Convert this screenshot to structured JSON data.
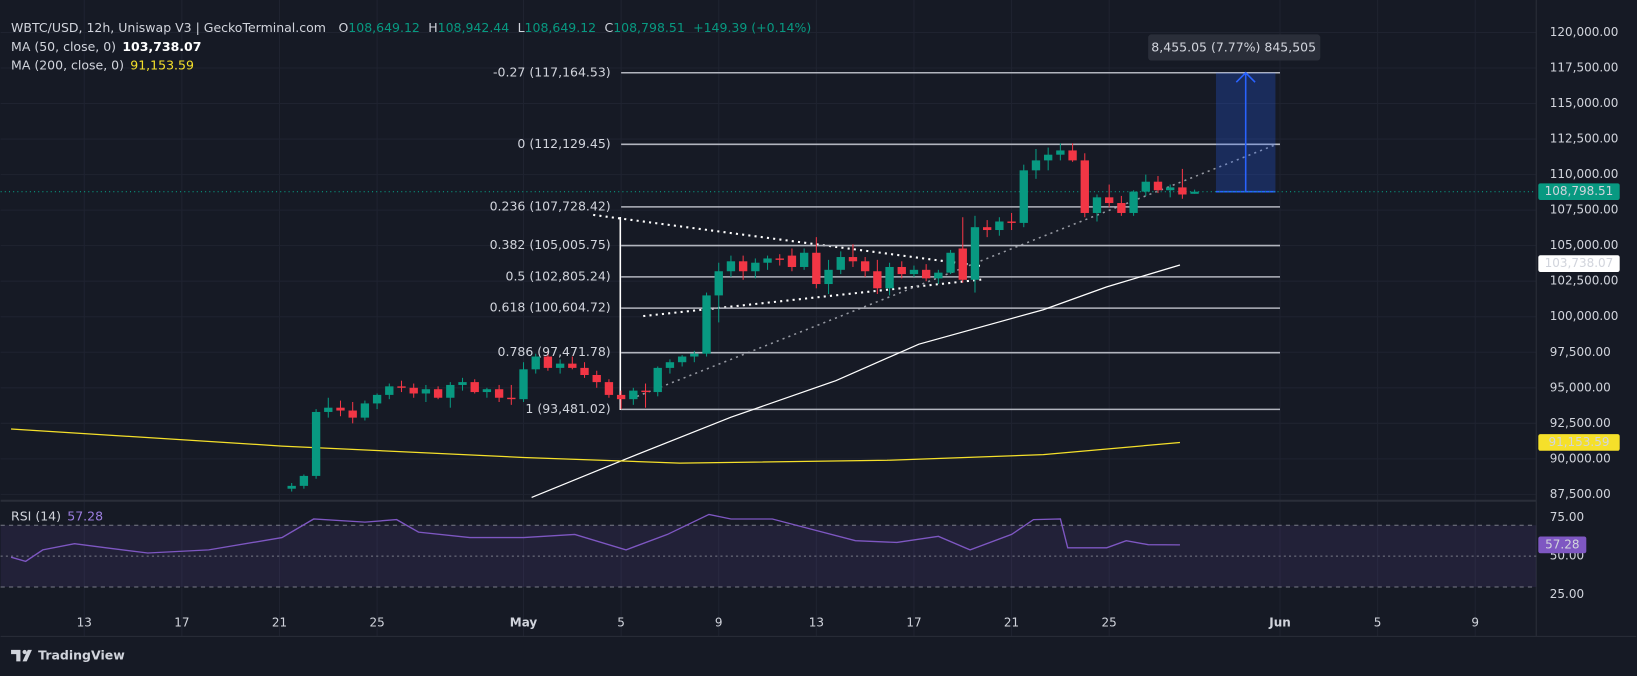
{
  "chart_data": {
    "type": "candlestick",
    "title": "WBTC/USD, 12h, Uniswap V3 | GeckoTerminal.com",
    "ohlc_legend": [
      {
        "key": "O",
        "value": "108,649.12"
      },
      {
        "key": "H",
        "value": "108,942.44"
      },
      {
        "key": "L",
        "value": "108,649.12"
      },
      {
        "key": "C",
        "value": "108,798.51"
      }
    ],
    "change": "+149.39 (+0.14%)",
    "up_color": "#089981",
    "down_color": "#f23645",
    "candles": [
      {
        "x": 21.5,
        "open": 87900,
        "high": 88300,
        "low": 87700,
        "close": 88100
      },
      {
        "x": 22,
        "open": 88100,
        "high": 88900,
        "low": 87900,
        "close": 88800
      },
      {
        "x": 22.5,
        "open": 88800,
        "high": 93500,
        "low": 88600,
        "close": 93300
      },
      {
        "x": 23,
        "open": 93300,
        "high": 94300,
        "low": 92900,
        "close": 93600
      },
      {
        "x": 23.5,
        "open": 93600,
        "high": 94100,
        "low": 93000,
        "close": 93400
      },
      {
        "x": 24,
        "open": 93400,
        "high": 94000,
        "low": 92500,
        "close": 92900
      },
      {
        "x": 24.5,
        "open": 92900,
        "high": 94100,
        "low": 92700,
        "close": 93900
      },
      {
        "x": 25,
        "open": 93900,
        "high": 94600,
        "low": 93500,
        "close": 94500
      },
      {
        "x": 25.5,
        "open": 94500,
        "high": 95300,
        "low": 94200,
        "close": 95100
      },
      {
        "x": 26,
        "open": 95100,
        "high": 95500,
        "low": 94700,
        "close": 95000
      },
      {
        "x": 26.5,
        "open": 95000,
        "high": 95300,
        "low": 94300,
        "close": 94600
      },
      {
        "x": 27,
        "open": 94600,
        "high": 95200,
        "low": 94000,
        "close": 94900
      },
      {
        "x": 27.5,
        "open": 94900,
        "high": 95100,
        "low": 94200,
        "close": 94300
      },
      {
        "x": 28,
        "open": 94300,
        "high": 95400,
        "low": 93600,
        "close": 95200
      },
      {
        "x": 28.5,
        "open": 95200,
        "high": 95700,
        "low": 94800,
        "close": 95400
      },
      {
        "x": 29,
        "open": 95400,
        "high": 95600,
        "low": 94600,
        "close": 94700
      },
      {
        "x": 29.5,
        "open": 94700,
        "high": 95000,
        "low": 94300,
        "close": 94900
      },
      {
        "x": 30,
        "open": 94900,
        "high": 95200,
        "low": 94000,
        "close": 94300
      },
      {
        "x": 30.5,
        "open": 94300,
        "high": 95200,
        "low": 93800,
        "close": 94200
      },
      {
        "x": 31,
        "open": 94200,
        "high": 96800,
        "low": 94000,
        "close": 96300
      },
      {
        "x": 31.5,
        "open": 96300,
        "high": 97400,
        "low": 96000,
        "close": 97200
      },
      {
        "x": 32,
        "open": 97200,
        "high": 97600,
        "low": 96200,
        "close": 96400
      },
      {
        "x": 32.5,
        "open": 96400,
        "high": 97000,
        "low": 96000,
        "close": 96700
      },
      {
        "x": 33,
        "open": 96700,
        "high": 97200,
        "low": 96300,
        "close": 96400
      },
      {
        "x": 33.5,
        "open": 96400,
        "high": 96800,
        "low": 95700,
        "close": 95900
      },
      {
        "x": 34,
        "open": 95900,
        "high": 96200,
        "low": 95000,
        "close": 95400
      },
      {
        "x": 34.5,
        "open": 95400,
        "high": 95600,
        "low": 94300,
        "close": 94500
      },
      {
        "x": 35,
        "open": 94500,
        "high": 94800,
        "low": 93500,
        "close": 94200
      },
      {
        "x": 35.5,
        "open": 94200,
        "high": 95000,
        "low": 93800,
        "close": 94800
      },
      {
        "x": 36,
        "open": 94800,
        "high": 95300,
        "low": 93600,
        "close": 94700
      },
      {
        "x": 36.5,
        "open": 94700,
        "high": 96500,
        "low": 94400,
        "close": 96400
      },
      {
        "x": 37,
        "open": 96400,
        "high": 97000,
        "low": 96000,
        "close": 96800
      },
      {
        "x": 37.5,
        "open": 96800,
        "high": 97300,
        "low": 96500,
        "close": 97200
      },
      {
        "x": 38,
        "open": 97200,
        "high": 97600,
        "low": 96800,
        "close": 97400
      },
      {
        "x": 38.5,
        "open": 97400,
        "high": 101700,
        "low": 97200,
        "close": 101500
      },
      {
        "x": 39,
        "open": 101500,
        "high": 103800,
        "low": 99600,
        "close": 103200
      },
      {
        "x": 39.5,
        "open": 103200,
        "high": 104300,
        "low": 102800,
        "close": 103900
      },
      {
        "x": 40,
        "open": 103900,
        "high": 104300,
        "low": 102600,
        "close": 103200
      },
      {
        "x": 40.5,
        "open": 103200,
        "high": 104100,
        "low": 102700,
        "close": 103800
      },
      {
        "x": 41,
        "open": 103800,
        "high": 104300,
        "low": 103300,
        "close": 104100
      },
      {
        "x": 41.5,
        "open": 104100,
        "high": 104400,
        "low": 103600,
        "close": 104000
      },
      {
        "x": 42,
        "open": 104300,
        "high": 104800,
        "low": 103200,
        "close": 103500
      },
      {
        "x": 42.5,
        "open": 103500,
        "high": 104800,
        "low": 103300,
        "close": 104500
      },
      {
        "x": 43,
        "open": 104500,
        "high": 105600,
        "low": 102000,
        "close": 102300
      },
      {
        "x": 43.5,
        "open": 102300,
        "high": 104000,
        "low": 101600,
        "close": 103300
      },
      {
        "x": 44,
        "open": 103300,
        "high": 104600,
        "low": 103000,
        "close": 104200
      },
      {
        "x": 44.5,
        "open": 104200,
        "high": 105100,
        "low": 103500,
        "close": 103900
      },
      {
        "x": 45,
        "open": 103900,
        "high": 104200,
        "low": 102800,
        "close": 103200
      },
      {
        "x": 45.5,
        "open": 103200,
        "high": 104000,
        "low": 101600,
        "close": 102000
      },
      {
        "x": 46,
        "open": 102000,
        "high": 103800,
        "low": 101500,
        "close": 103500
      },
      {
        "x": 46.5,
        "open": 103500,
        "high": 103900,
        "low": 102700,
        "close": 103000
      },
      {
        "x": 47,
        "open": 103000,
        "high": 103600,
        "low": 102800,
        "close": 103300
      },
      {
        "x": 47.5,
        "open": 103300,
        "high": 103700,
        "low": 102500,
        "close": 102700
      },
      {
        "x": 48,
        "open": 102700,
        "high": 103300,
        "low": 102300,
        "close": 103100
      },
      {
        "x": 48.5,
        "open": 103100,
        "high": 104700,
        "low": 103000,
        "close": 104500
      },
      {
        "x": 49,
        "open": 104800,
        "high": 107000,
        "low": 102400,
        "close": 102600
      },
      {
        "x": 49.5,
        "open": 102600,
        "high": 107100,
        "low": 101700,
        "close": 106300
      },
      {
        "x": 50,
        "open": 106300,
        "high": 106800,
        "low": 105600,
        "close": 106100
      },
      {
        "x": 50.5,
        "open": 106100,
        "high": 107000,
        "low": 105700,
        "close": 106700
      },
      {
        "x": 51,
        "open": 106700,
        "high": 107300,
        "low": 106100,
        "close": 106600
      },
      {
        "x": 51.5,
        "open": 106600,
        "high": 110700,
        "low": 106300,
        "close": 110300
      },
      {
        "x": 52,
        "open": 110300,
        "high": 111800,
        "low": 109700,
        "close": 111000
      },
      {
        "x": 52.5,
        "open": 111000,
        "high": 111900,
        "low": 110300,
        "close": 111400
      },
      {
        "x": 53,
        "open": 111400,
        "high": 112200,
        "low": 111000,
        "close": 111700
      },
      {
        "x": 53.5,
        "open": 111700,
        "high": 112200,
        "low": 110900,
        "close": 111000
      },
      {
        "x": 54,
        "open": 111000,
        "high": 111500,
        "low": 107000,
        "close": 107300
      },
      {
        "x": 54.5,
        "open": 107300,
        "high": 108600,
        "low": 106700,
        "close": 108400
      },
      {
        "x": 55,
        "open": 108400,
        "high": 109300,
        "low": 107700,
        "close": 108000
      },
      {
        "x": 55.5,
        "open": 108000,
        "high": 108500,
        "low": 107100,
        "close": 107300
      },
      {
        "x": 56,
        "open": 107300,
        "high": 108900,
        "low": 107100,
        "close": 108800
      },
      {
        "x": 56.5,
        "open": 108800,
        "high": 110000,
        "low": 108500,
        "close": 109500
      },
      {
        "x": 57,
        "open": 109500,
        "high": 109900,
        "low": 108700,
        "close": 108900
      },
      {
        "x": 57.5,
        "open": 108900,
        "high": 109300,
        "low": 108400,
        "close": 109100
      },
      {
        "x": 58,
        "open": 109100,
        "high": 110400,
        "low": 108300,
        "close": 108600
      },
      {
        "x": 58.5,
        "open": 108649.12,
        "high": 108942.44,
        "low": 108649.12,
        "close": 108798.51
      }
    ],
    "xlim": [
      10,
      72.5
    ],
    "xticks": [
      13,
      17,
      21,
      25,
      {
        "value": 31,
        "label": "May"
      },
      {
        "value": 35,
        "label": "5"
      },
      {
        "value": 39,
        "label": "9"
      },
      {
        "value": 43,
        "label": "13"
      },
      {
        "value": 47,
        "label": "17"
      },
      {
        "value": 51,
        "label": "21"
      },
      {
        "value": 55,
        "label": "25"
      },
      {
        "value": 62,
        "label": "Jun"
      },
      {
        "value": 66,
        "label": "5"
      },
      {
        "value": 70,
        "label": "9"
      }
    ],
    "ylim": [
      87200,
      121550
    ],
    "yticks": [
      {
        "value": 87500,
        "label": "87,500.00"
      },
      {
        "value": 90000,
        "label": "90,000.00"
      },
      {
        "value": 92500,
        "label": "92,500.00"
      },
      {
        "value": 95000,
        "label": "95,000.00"
      },
      {
        "value": 97500,
        "label": "97,500.00"
      },
      {
        "value": 100000,
        "label": "100,000.00"
      },
      {
        "value": 102500,
        "label": "102,500.00"
      },
      {
        "value": 105000,
        "label": "105,000.00"
      },
      {
        "value": 107500,
        "label": "107,500.00"
      },
      {
        "value": 110000,
        "label": "110,000.00"
      },
      {
        "value": 112500,
        "label": "112,500.00"
      },
      {
        "value": 115000,
        "label": "115,000.00"
      },
      {
        "value": 117500,
        "label": "117,500.00"
      },
      {
        "value": 120000,
        "label": "120,000.00"
      }
    ],
    "grid": true,
    "last_price": {
      "value": 108798.51,
      "label": "108,798.51"
    },
    "indicators": [
      {
        "name": "MA (50, close, 0)",
        "value": 103738.07,
        "value_label": "103,738.07",
        "color": "#ffffff",
        "x": [
          31.33,
          35.2,
          39.5,
          43.8,
          47.2,
          52.3,
          54.9,
          57.9
        ],
        "values": [
          87290,
          90000,
          92930,
          95500,
          98070,
          100490,
          102100,
          103640
        ]
      },
      {
        "name": "MA (200, close, 0)",
        "value": 91153.59,
        "value_label": "91,153.59",
        "color": "#f5e02a",
        "x": [
          10,
          21.1,
          31,
          37.4,
          45.9,
          52.3,
          57.9
        ],
        "values": [
          92100,
          90900,
          90100,
          89700,
          89900,
          90300,
          91150
        ]
      }
    ],
    "fib_levels": [
      {
        "label": "-0.27 (117,164.53)",
        "value": 117164.53
      },
      {
        "label": "0 (112,129.45)",
        "value": 112129.45
      },
      {
        "label": "0.236 (107,728.42)",
        "value": 107728.42
      },
      {
        "label": "0.382 (105,005.75)",
        "value": 105005.75
      },
      {
        "label": "0.5 (102,805.24)",
        "value": 102805.24
      },
      {
        "label": "0.618 (100,604.72)",
        "value": 100604.72
      },
      {
        "label": "0.786 (97,471.78)",
        "value": 97471.78
      },
      {
        "label": "1 (93,481.02)",
        "value": 93481.02
      }
    ],
    "fib_xlim": [
      35,
      62
    ],
    "measure": {
      "label": "8,455.05 (7.77%) 845,505"
    },
    "rsi": {
      "name": "RSI (14)",
      "value": 57.28,
      "color": "#7e57c2",
      "x": [
        10,
        10.6,
        11.3,
        12.6,
        13.9,
        15.6,
        18.1,
        21.1,
        22.4,
        24.5,
        25.8,
        26.7,
        28.8,
        31.0,
        33.1,
        35.2,
        36.9,
        38.6,
        39.5,
        41.2,
        42.9,
        44.6,
        46.3,
        48.0,
        49.3,
        51.0,
        51.9,
        53.0,
        53.3,
        54.9,
        55.7,
        56.6,
        57.9
      ],
      "values": [
        49.3,
        46.6,
        54,
        58,
        55.4,
        52,
        54,
        62,
        74,
        72,
        73.6,
        65.5,
        62,
        62,
        64,
        54,
        64,
        77,
        74,
        74,
        67,
        60,
        58.8,
        62.8,
        54,
        64,
        73.6,
        74,
        55.4,
        55.4,
        60,
        57.4,
        57.28
      ],
      "ylim": [
        1.4,
        84.5
      ],
      "yticks": [
        {
          "value": 25,
          "label": "25.00"
        },
        {
          "value": 50,
          "label": "50.00"
        },
        {
          "value": 75,
          "label": "75.00"
        }
      ],
      "levels": [
        70,
        50,
        30
      ]
    },
    "branding": "TradingView"
  }
}
